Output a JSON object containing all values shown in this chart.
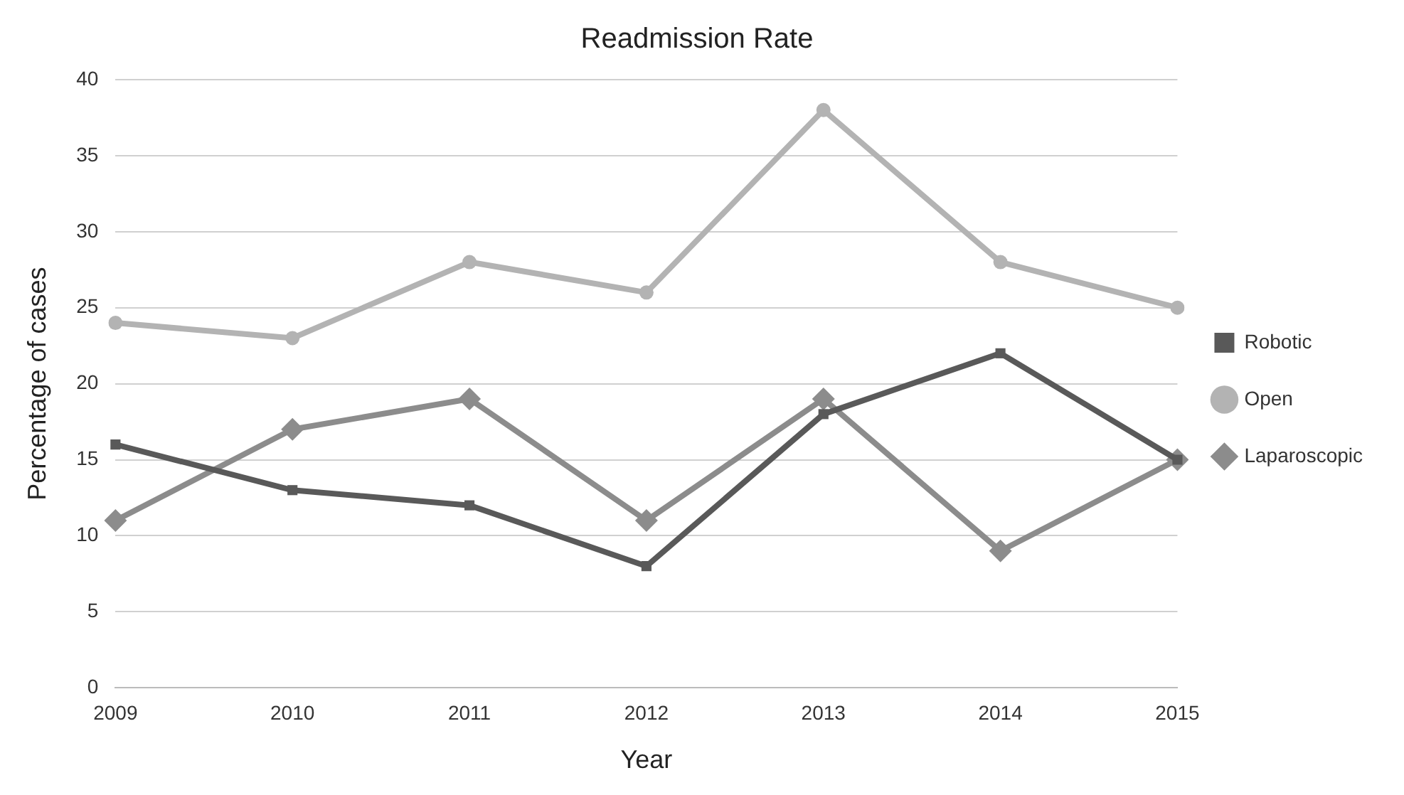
{
  "chart_data": {
    "type": "line",
    "title": "Readmission Rate",
    "xlabel": "Year",
    "ylabel": "Percentage of cases",
    "categories": [
      "2009",
      "2010",
      "2011",
      "2012",
      "2013",
      "2014",
      "2015"
    ],
    "series": [
      {
        "name": "Robotic",
        "color": "#595959",
        "marker": "square",
        "values": [
          16,
          13,
          12,
          8,
          18,
          22,
          15
        ]
      },
      {
        "name": "Open",
        "color": "#b3b3b3",
        "marker": "circle",
        "values": [
          24,
          23,
          28,
          26,
          38,
          28,
          25
        ]
      },
      {
        "name": "Laparoscopic",
        "color": "#8c8c8c",
        "marker": "diamond",
        "values": [
          11,
          17,
          19,
          11,
          19,
          9,
          15
        ]
      }
    ],
    "ylim": [
      0,
      40
    ],
    "yticks": [
      0,
      5,
      10,
      15,
      20,
      25,
      30,
      35,
      40
    ],
    "grid": "y",
    "legend": "right",
    "line_style": "solid"
  }
}
